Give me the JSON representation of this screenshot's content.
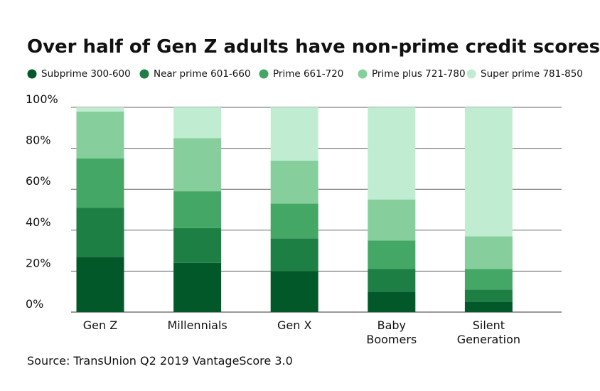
{
  "chart_data": {
    "type": "stacked_bar",
    "title": "Over half of Gen Z adults have non-prime credit scores",
    "source": "Source: TransUnion Q2 2019 VantageScore 3.0",
    "categories": [
      "Gen Z",
      "Millennials",
      "Gen X",
      "Baby Boomers",
      "Silent Generation"
    ],
    "series": [
      {
        "name": "Subprime 300-600",
        "color": "#03582a",
        "values": [
          27,
          24,
          20,
          10,
          5
        ]
      },
      {
        "name": "Near prime 601-660",
        "color": "#1e7f45",
        "values": [
          24,
          17,
          16,
          11,
          6
        ]
      },
      {
        "name": "Prime 661-720",
        "color": "#45a766",
        "values": [
          24,
          18,
          17,
          14,
          10
        ]
      },
      {
        "name": "Prime plus 721-780",
        "color": "#86cf9c",
        "values": [
          23,
          26,
          21,
          20,
          16
        ]
      },
      {
        "name": "Super prime 781-850",
        "color": "#c0edd2",
        "values": [
          2,
          15,
          26,
          45,
          63
        ]
      }
    ],
    "ylim": [
      0,
      100
    ],
    "yticks": [
      {
        "value": 0,
        "label": "0%"
      },
      {
        "value": 20,
        "label": "20%"
      },
      {
        "value": 40,
        "label": "40%"
      },
      {
        "value": 60,
        "label": "60%"
      },
      {
        "value": 80,
        "label": "80%"
      },
      {
        "value": 100,
        "label": "100%"
      }
    ],
    "grid": true
  }
}
